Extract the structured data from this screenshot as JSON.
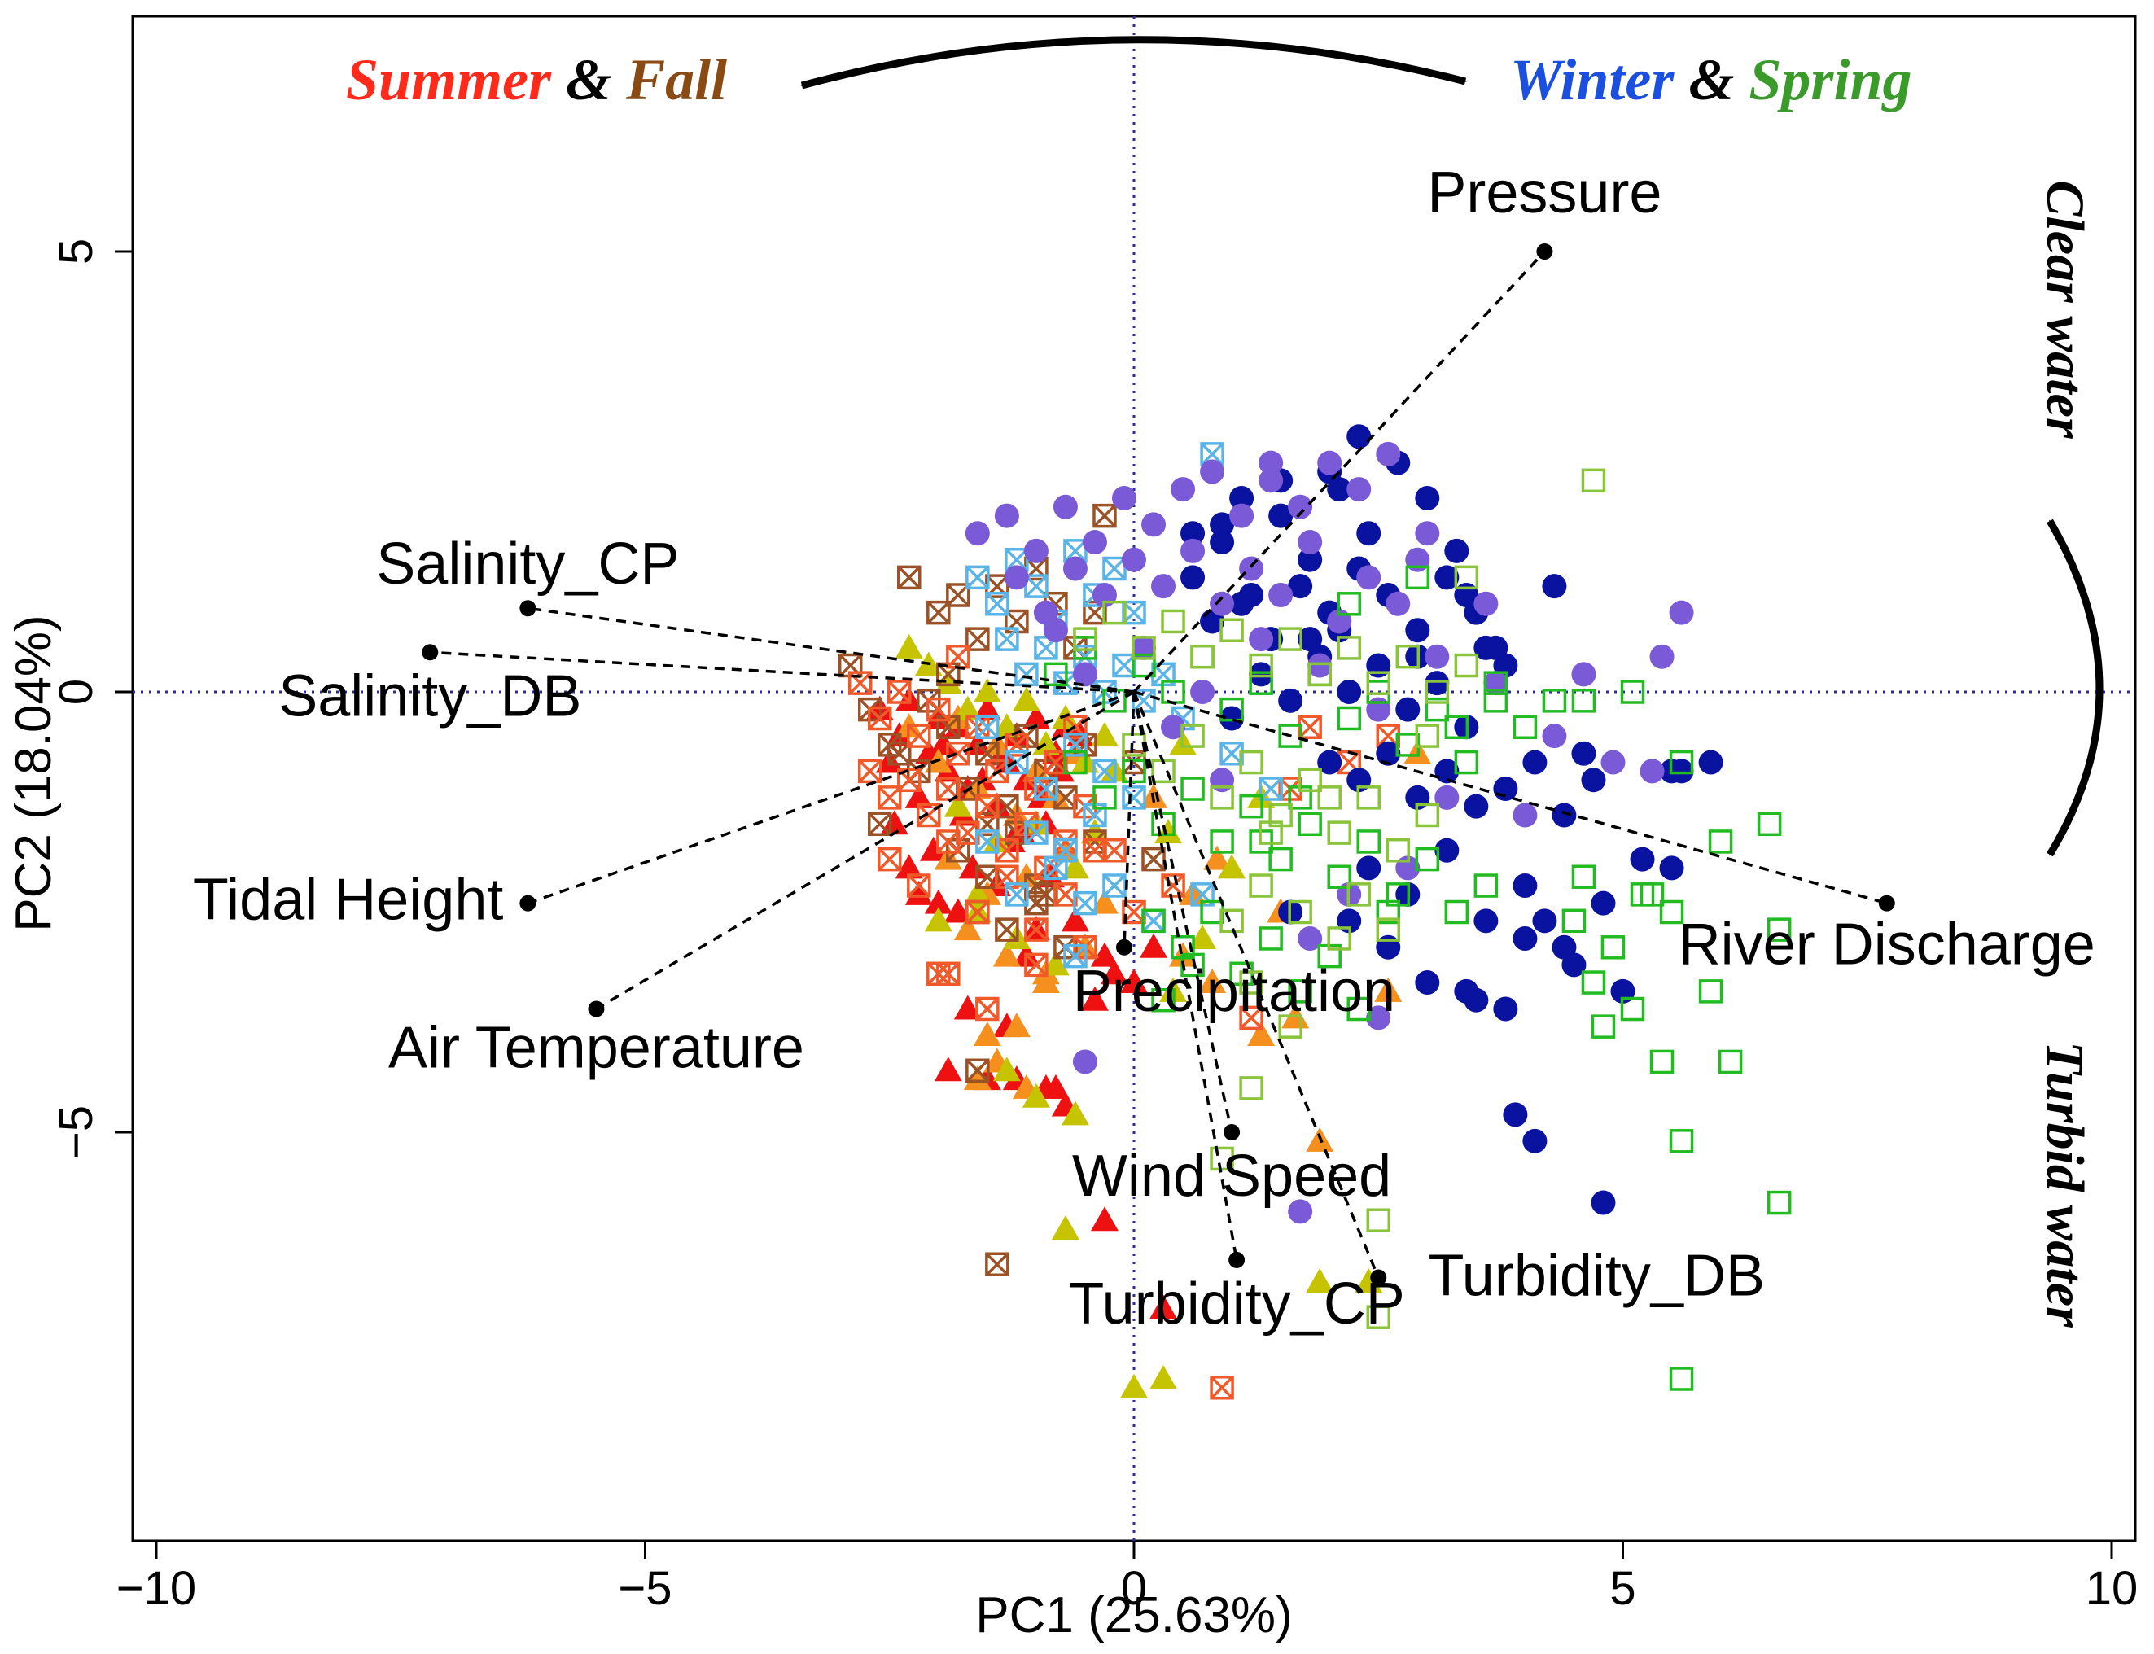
{
  "chart_data": {
    "type": "scatter",
    "subtype": "pca-biplot",
    "xlabel": "PC1 (25.63%)",
    "ylabel": "PC2 (18.04%)",
    "xlim": [
      -10.2,
      10.2
    ],
    "ylim": [
      -9.1,
      7.6
    ],
    "xticks": [
      -10,
      -5,
      0,
      5,
      10
    ],
    "yticks": [
      -5,
      0,
      5
    ],
    "xtick_labels": [
      "−10",
      "−5",
      "0",
      "5",
      "10"
    ],
    "ytick_labels": [
      "−5",
      "0",
      "5"
    ],
    "reference_lines": {
      "x": 0,
      "y": 0,
      "color": "#2a2aa8",
      "style": "dotted"
    },
    "annotations": {
      "season_left": [
        {
          "text": "Summer",
          "color": "#ff2a1a"
        },
        {
          "text": " & ",
          "color": "#000000"
        },
        {
          "text": "Fall",
          "color": "#8a4a14"
        }
      ],
      "season_right": [
        {
          "text": "Winter",
          "color": "#1a4fe0"
        },
        {
          "text": " & ",
          "color": "#000000"
        },
        {
          "text": "Spring",
          "color": "#3a9a2a"
        }
      ],
      "water_top": "Clear water",
      "water_bottom": "Turbid water"
    },
    "loadings": [
      {
        "name": "Pressure",
        "x": 4.2,
        "y": 5.0
      },
      {
        "name": "Salinity_CP",
        "x": -6.2,
        "y": 0.95
      },
      {
        "name": "Salinity_DB",
        "x": -7.2,
        "y": 0.45
      },
      {
        "name": "Tidal Height",
        "x": -6.2,
        "y": -2.4
      },
      {
        "name": "Air Temperature",
        "x": -5.5,
        "y": -3.6
      },
      {
        "name": "Precipitation",
        "x": -0.1,
        "y": -2.9
      },
      {
        "name": "Wind Speed",
        "x": 1.0,
        "y": -5.0
      },
      {
        "name": "Turbidity_CP",
        "x": 1.05,
        "y": -6.45
      },
      {
        "name": "Turbidity_DB",
        "x": 2.5,
        "y": -6.65
      },
      {
        "name": "River Discharge",
        "x": 7.7,
        "y": -2.4
      }
    ],
    "series": [
      {
        "name": "Summer (red triangles)",
        "marker": "triangle",
        "color": "#ee1111",
        "x": [
          -2.6,
          -2.4,
          -2.3,
          -2.1,
          -2.0,
          -1.9,
          -1.8,
          -1.7,
          -1.6,
          -1.5,
          -1.4,
          -1.3,
          -1.2,
          -1.1,
          -1.0,
          -0.9,
          -0.8,
          -0.7,
          -2.5,
          -2.2,
          -1.95,
          -1.75,
          -1.55,
          -1.35,
          -1.15,
          -0.95,
          -0.75,
          -0.55,
          -2.45,
          -2.05,
          -1.65,
          -1.25,
          -0.85,
          -2.2,
          -1.8,
          -1.4,
          -1.0,
          -0.6,
          -0.3,
          0.0,
          -2.3,
          -1.7,
          -1.1,
          -0.4,
          -2.0,
          -0.8,
          -1.2,
          -0.2,
          0.3,
          -1.9,
          -1.5,
          -1.3,
          -0.7,
          -0.9,
          -0.3,
          0.2
        ],
        "y": [
          -0.2,
          -0.5,
          -0.1,
          -0.7,
          -0.3,
          -0.9,
          -0.4,
          -1.1,
          -0.6,
          -0.2,
          -1.3,
          -0.8,
          -0.5,
          -1.0,
          -0.3,
          -1.5,
          -0.7,
          -0.4,
          -0.8,
          -1.2,
          -0.6,
          -1.4,
          -1.0,
          -0.7,
          -1.6,
          -1.2,
          -0.9,
          -0.5,
          -1.5,
          -1.8,
          -2.0,
          -1.7,
          -2.1,
          -2.3,
          -2.5,
          -2.2,
          -2.7,
          -2.6,
          -3.0,
          -3.3,
          -2.0,
          -3.6,
          -3.0,
          -3.5,
          -2.4,
          -4.5,
          -4.4,
          -3.2,
          -7.0,
          -4.3,
          -4.4,
          -3.8,
          -4.7,
          -4.5,
          -6.0,
          -2.9
        ]
      },
      {
        "name": "Summer (orange triangles)",
        "marker": "triangle",
        "color": "#f5901e",
        "x": [
          -2.3,
          -2.0,
          -1.8,
          -1.6,
          -1.4,
          -1.2,
          -1.0,
          -0.8,
          -0.6,
          -0.4,
          -1.9,
          -1.5,
          -1.1,
          -0.7,
          -0.3,
          -1.7,
          -1.3,
          -0.9,
          -0.5,
          -1.6,
          -1.5,
          -1.2,
          -0.9,
          0.6,
          0.85,
          1.5,
          1.65,
          1.9,
          2.6,
          2.9,
          0.5,
          0.8,
          1.3,
          -1.4,
          -1.1,
          0.2
        ],
        "y": [
          -0.4,
          -0.8,
          -0.3,
          -1.1,
          -0.6,
          -1.4,
          -0.9,
          -1.2,
          -0.7,
          -1.6,
          -1.9,
          -2.3,
          -2.1,
          -1.8,
          -2.4,
          -2.7,
          -3.0,
          -3.2,
          -2.9,
          -4.4,
          -3.9,
          -3.8,
          -3.3,
          -2.3,
          -1.9,
          -2.5,
          -3.7,
          -5.1,
          -3.4,
          -0.7,
          -3.0,
          -3.3,
          -3.9,
          -4.2,
          -4.5,
          -1.2
        ],
        "_note": "value arrays are estimated positions read from the figure"
      },
      {
        "name": "Summer (olive triangles)",
        "marker": "triangle",
        "color": "#c6c400",
        "x": [
          -2.3,
          -2.1,
          -1.9,
          -1.7,
          -1.5,
          -1.3,
          -1.1,
          -0.9,
          -0.7,
          -0.5,
          -0.3,
          -1.8,
          -1.4,
          -1.0,
          -0.6,
          -2.0,
          -1.6,
          -1.2,
          -0.8,
          -0.4,
          -1.3,
          -1.0,
          -0.7,
          -0.6,
          0.0,
          0.3,
          1.0,
          1.3,
          1.9,
          2.4,
          0.35,
          0.7,
          0.5,
          -1.6,
          0.4,
          -0.2
        ],
        "y": [
          0.5,
          0.3,
          0.1,
          -0.2,
          0.0,
          -0.4,
          -0.1,
          -0.6,
          -0.3,
          -0.8,
          -0.5,
          -1.3,
          -1.7,
          -1.5,
          -2.0,
          -2.6,
          -2.3,
          -2.8,
          -3.1,
          -1.6,
          -4.3,
          -4.6,
          -6.1,
          -4.8,
          -7.9,
          -7.8,
          -2.0,
          -1.2,
          -6.7,
          -6.7,
          -1.6,
          -2.8,
          -0.6,
          -2.5,
          -3.4,
          -0.9
        ]
      },
      {
        "name": "Fall (brown crossed squares)",
        "marker": "square-x",
        "color": "#9a5226",
        "x": [
          -2.3,
          -2.0,
          -1.8,
          -1.6,
          -1.4,
          -1.2,
          -1.0,
          -0.8,
          -0.6,
          -0.4,
          -2.9,
          -2.7,
          -2.5,
          -2.2,
          -1.9,
          -1.7,
          -1.5,
          -1.3,
          -1.1,
          -0.9,
          -0.7,
          -0.5,
          -1.8,
          -1.5,
          -1.2,
          -0.9,
          -1.6,
          -1.3,
          -1.0,
          -0.7,
          -2.1,
          -1.9,
          -1.5,
          -1.4,
          -1.0,
          -0.4,
          0.0,
          0.2,
          -2.6,
          -2.4,
          -1.6,
          -0.3
        ],
        "y": [
          1.3,
          0.9,
          1.1,
          0.6,
          1.2,
          0.8,
          1.4,
          1.0,
          0.5,
          0.9,
          0.3,
          -0.2,
          -0.6,
          -0.9,
          -0.4,
          -1.1,
          -0.7,
          -1.3,
          -0.5,
          -0.9,
          -1.2,
          -0.6,
          -1.8,
          -2.1,
          -1.6,
          -2.3,
          -2.5,
          -2.7,
          -2.4,
          -2.9,
          -0.1,
          0.2,
          -1.5,
          -6.5,
          -2.2,
          -1.7,
          -0.8,
          -1.9,
          -1.5,
          -0.7,
          -4.3,
          2.0
        ]
      },
      {
        "name": "Fall (orange-red crossed squares)",
        "marker": "square-x",
        "color": "#f05a2a",
        "x": [
          -2.8,
          -2.6,
          -2.4,
          -2.2,
          -2.0,
          -1.8,
          -1.6,
          -1.4,
          -1.2,
          -1.0,
          -0.8,
          -0.6,
          -2.7,
          -2.5,
          -2.3,
          -2.1,
          -1.9,
          -1.7,
          -1.5,
          -1.3,
          -1.1,
          -0.9,
          -0.7,
          -0.5,
          -2.5,
          -2.2,
          -1.9,
          -1.6,
          -1.3,
          -1.0,
          -0.7,
          -0.4,
          -2.0,
          -1.5,
          -1.0,
          -0.5,
          -1.9,
          0.0,
          0.4,
          1.2,
          1.8,
          2.2,
          2.6,
          -0.2,
          0.9,
          1.6,
          -1.8
        ],
        "y": [
          0.1,
          -0.3,
          0.0,
          -0.5,
          -0.2,
          -0.7,
          -0.4,
          -0.9,
          -0.6,
          -1.1,
          -0.8,
          -0.4,
          -0.9,
          -1.2,
          -1.0,
          -1.4,
          -1.1,
          -1.6,
          -1.3,
          -1.8,
          -1.5,
          -2.0,
          -1.7,
          -1.3,
          -1.9,
          -2.2,
          -1.7,
          -2.5,
          -2.1,
          -2.7,
          -2.3,
          -1.8,
          -3.2,
          -3.6,
          -3.1,
          -2.9,
          -3.2,
          -2.5,
          -2.2,
          -3.7,
          -0.4,
          -0.8,
          -0.5,
          -1.8,
          -7.9,
          -1.1,
          0.4
        ],
        "_note": "value arrays are estimated positions read from the figure"
      },
      {
        "name": "Fall (light blue crossed squares)",
        "marker": "square-x",
        "color": "#5ab4e6",
        "x": [
          -1.6,
          -1.4,
          -1.2,
          -1.0,
          -0.8,
          -0.6,
          -0.4,
          -0.2,
          0.0,
          -1.3,
          -1.1,
          -0.9,
          -0.7,
          -0.5,
          -0.3,
          -0.1,
          0.1,
          0.3,
          -1.5,
          -1.2,
          -0.9,
          -0.6,
          -0.3,
          0.0,
          -1.0,
          -0.7,
          -0.4,
          -1.2,
          -0.8,
          -0.5,
          -0.2,
          0.2,
          0.5,
          1.0,
          1.4,
          0.8,
          -0.6,
          -1.5,
          0.7
        ],
        "y": [
          1.3,
          1.0,
          1.5,
          1.2,
          0.8,
          1.6,
          1.1,
          1.4,
          0.9,
          0.6,
          0.2,
          0.5,
          0.1,
          0.4,
          0.0,
          0.3,
          -0.1,
          0.2,
          -0.4,
          -0.8,
          -1.1,
          -0.6,
          -0.9,
          -1.2,
          -1.6,
          -1.8,
          -1.4,
          -2.3,
          -2.0,
          -2.4,
          -2.2,
          -2.6,
          -0.3,
          -0.7,
          -1.1,
          2.7,
          -3.0,
          -1.7,
          -2.3
        ]
      },
      {
        "name": "Winter (dark blue circles)",
        "marker": "circle",
        "color": "#0a12a0",
        "x": [
          0.6,
          0.9,
          1.2,
          1.5,
          1.8,
          2.1,
          2.4,
          2.7,
          3.0,
          3.3,
          0.8,
          1.1,
          1.4,
          1.7,
          2.0,
          2.3,
          2.6,
          2.9,
          3.2,
          3.5,
          1.0,
          1.3,
          1.6,
          1.9,
          2.2,
          2.5,
          2.8,
          3.1,
          3.4,
          3.7,
          2.0,
          2.3,
          2.6,
          2.9,
          3.2,
          3.5,
          3.8,
          4.1,
          4.4,
          4.7,
          2.4,
          2.8,
          3.2,
          3.6,
          4.0,
          4.4,
          4.8,
          5.2,
          5.6,
          5.9,
          3.0,
          3.5,
          4.0,
          4.5,
          5.0,
          5.5,
          1.6,
          2.2,
          2.6,
          3.4,
          3.8,
          4.2,
          4.6,
          5.5,
          3.9,
          4.1,
          4.8,
          2.3,
          2.0,
          1.5,
          1.1,
          0.9,
          0.6,
          4.3,
          3.4,
          3.8,
          2.9,
          3.6,
          1.8,
          2.1
        ],
        "y": [
          1.3,
          1.7,
          1.1,
          2.0,
          1.5,
          2.3,
          1.8,
          2.6,
          2.2,
          1.6,
          0.8,
          1.0,
          0.6,
          1.2,
          0.9,
          1.4,
          1.1,
          0.7,
          1.3,
          0.9,
          -0.3,
          0.2,
          -0.1,
          0.4,
          0.0,
          0.3,
          -0.2,
          0.1,
          -0.4,
          0.5,
          -0.8,
          -1.0,
          -0.7,
          -1.2,
          -0.9,
          -1.3,
          -1.1,
          -0.8,
          -1.4,
          -1.0,
          -2.0,
          -2.3,
          -1.8,
          -2.6,
          -2.2,
          -2.9,
          -2.4,
          -1.9,
          -0.9,
          -0.8,
          -3.3,
          -3.5,
          -2.8,
          -3.1,
          -3.4,
          -2.0,
          -2.5,
          -2.6,
          -2.9,
          -3.4,
          -3.6,
          -2.6,
          -0.7,
          -0.9,
          -4.8,
          -5.1,
          -5.8,
          2.9,
          2.5,
          2.4,
          2.2,
          1.9,
          1.8,
          1.2,
          1.1,
          0.3,
          0.4,
          0.5,
          0.6,
          0.7
        ]
      },
      {
        "name": "Winter (purple circles)",
        "marker": "circle",
        "color": "#7a5ad6",
        "x": [
          -1.6,
          -1.3,
          -1.0,
          -0.7,
          -0.4,
          -0.1,
          0.2,
          0.5,
          0.8,
          1.1,
          1.4,
          1.7,
          2.0,
          2.3,
          2.6,
          -1.2,
          -0.9,
          -0.6,
          -0.3,
          0.0,
          0.3,
          0.6,
          0.9,
          1.2,
          1.5,
          1.8,
          2.1,
          2.4,
          2.7,
          3.0,
          -0.5,
          0.1,
          0.7,
          1.3,
          1.9,
          2.5,
          3.1,
          3.7,
          4.3,
          4.9,
          5.3,
          5.6,
          5.4,
          4.6,
          4.0,
          3.2,
          2.8,
          2.2,
          1.8,
          -0.5,
          1.7,
          2.5,
          0.4,
          0.9,
          -0.8,
          1.4,
          2.9,
          3.6
        ],
        "y": [
          1.8,
          2.0,
          1.6,
          2.1,
          1.7,
          2.2,
          1.9,
          2.3,
          2.5,
          2.0,
          2.4,
          2.1,
          2.6,
          2.3,
          2.7,
          1.3,
          0.9,
          1.4,
          1.1,
          1.5,
          1.2,
          1.6,
          1.0,
          1.4,
          1.1,
          1.7,
          0.8,
          1.3,
          1.0,
          1.8,
          0.2,
          0.5,
          0.0,
          0.6,
          0.3,
          -0.2,
          0.4,
          0.1,
          -0.5,
          -0.8,
          -0.9,
          0.9,
          0.4,
          0.2,
          -1.4,
          -1.2,
          -2.0,
          -2.3,
          -2.8,
          -4.2,
          -5.9,
          -3.7,
          -0.4,
          -1.0,
          0.7,
          2.6,
          1.5,
          1.0
        ]
      },
      {
        "name": "Spring (green open squares)",
        "marker": "square",
        "color": "#22bb22",
        "x": [
          -0.8,
          -0.5,
          -0.2,
          0.1,
          0.4,
          0.7,
          1.0,
          1.3,
          1.6,
          1.9,
          2.2,
          2.5,
          2.8,
          3.1,
          3.4,
          3.7,
          4.0,
          4.3,
          -0.6,
          -0.3,
          0.0,
          0.3,
          0.6,
          0.9,
          1.2,
          1.5,
          1.8,
          2.1,
          2.4,
          2.7,
          3.0,
          3.3,
          3.6,
          0.2,
          0.5,
          0.8,
          1.1,
          1.4,
          1.7,
          2.0,
          2.3,
          2.6,
          4.5,
          4.9,
          5.2,
          5.6,
          6.0,
          6.5,
          4.7,
          5.1,
          5.5,
          5.9,
          4.6,
          5.3,
          4.8,
          5.4,
          5.6,
          5.6,
          6.1,
          6.6,
          6.6,
          2.9,
          2.2,
          1.7,
          1.3,
          0.3,
          0.6,
          3.3,
          3.7,
          4.6,
          5.1
        ],
        "y": [
          0.2,
          0.5,
          -0.1,
          0.3,
          0.0,
          0.4,
          -0.2,
          0.1,
          -0.5,
          0.2,
          -0.3,
          0.0,
          -0.6,
          -0.2,
          -0.8,
          0.1,
          -0.4,
          -0.1,
          -0.8,
          -1.2,
          -0.9,
          -1.5,
          -1.1,
          -1.7,
          -1.3,
          -1.9,
          -1.5,
          -2.1,
          -1.7,
          -2.3,
          -1.9,
          -2.5,
          -2.2,
          -2.6,
          -2.9,
          -2.5,
          -3.2,
          -2.8,
          -3.4,
          -3.0,
          -3.6,
          -2.5,
          -2.6,
          -2.9,
          -2.3,
          -0.8,
          -1.7,
          -1.5,
          -3.3,
          -3.6,
          -2.5,
          -3.4,
          -2.1,
          -2.3,
          -3.8,
          -4.2,
          -5.1,
          -7.8,
          -4.2,
          -2.7,
          -5.8,
          1.3,
          1.0,
          -1.2,
          -1.7,
          -3.5,
          -3.1,
          -0.4,
          -0.1,
          -0.1,
          0.0
        ],
        "_note": "value arrays are estimated positions read from the figure"
      },
      {
        "name": "Spring (yellow-green open squares)",
        "marker": "square",
        "color": "#8ac43a",
        "x": [
          -0.5,
          -0.2,
          0.1,
          0.4,
          0.7,
          1.0,
          1.3,
          1.6,
          1.9,
          2.2,
          2.5,
          2.8,
          3.1,
          3.4,
          0.0,
          0.3,
          0.6,
          0.9,
          1.2,
          1.5,
          1.8,
          2.1,
          2.4,
          2.7,
          3.0,
          1.3,
          1.7,
          2.1,
          2.6,
          1.2,
          0.9,
          3.0,
          2.0,
          2.3,
          1.2,
          1.6,
          2.5,
          3.4,
          4.7,
          2.5,
          1.0,
          1.4
        ],
        "y": [
          0.6,
          0.9,
          0.5,
          0.8,
          0.4,
          0.7,
          0.3,
          0.6,
          0.2,
          0.5,
          0.1,
          0.4,
          0.0,
          0.3,
          -0.6,
          -0.9,
          -0.5,
          -1.2,
          -0.8,
          -1.4,
          -1.0,
          -1.6,
          -1.2,
          -1.8,
          -1.4,
          -2.2,
          -2.5,
          -2.8,
          -2.7,
          -4.5,
          -5.3,
          -0.5,
          -1.2,
          -2.3,
          -3.3,
          -3.8,
          -6.0,
          1.3,
          2.4,
          -7.1,
          -2.6,
          -1.6
        ]
      }
    ]
  }
}
